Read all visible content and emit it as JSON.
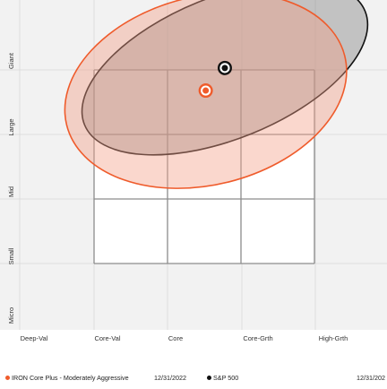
{
  "chart_data": {
    "type": "scatter",
    "x_categories": [
      "Deep-Val",
      "Core-Val",
      "Core",
      "Core-Grth",
      "High-Grth"
    ],
    "y_categories": [
      "Micro",
      "Small",
      "Mid",
      "Large",
      "Giant"
    ],
    "series": [
      {
        "name": "IRON Core Plus - Moderately Aggressive",
        "date": "12/31/2022",
        "x": 1.52,
        "y": 3.68,
        "ellipse": {
          "rx": 1.95,
          "ry": 1.46,
          "angle_deg": -14
        },
        "color": "#ef5b2b",
        "fill": "rgba(243,160,135,0.42)"
      },
      {
        "name": "S&P 500",
        "date": "12/31/202",
        "x": 1.78,
        "y": 4.03,
        "ellipse": {
          "rx": 2.06,
          "ry": 1.1,
          "angle_deg": -22
        },
        "color": "#111111",
        "fill": "rgba(136,136,136,0.45)"
      }
    ],
    "style_box": {
      "x_range": [
        0,
        3
      ],
      "y_range": [
        1,
        4
      ]
    },
    "colors": {
      "background": "#f2f2f2",
      "grid": "#dddddd",
      "box": "#8c8c8c",
      "portfolio": "#ef5b2b",
      "benchmark": "#111111"
    }
  },
  "legend": {
    "items": [
      {
        "label": "IRON Core Plus - Moderately Aggressive",
        "date": "12/31/2022"
      },
      {
        "label": "S&P 500",
        "date": "12/31/202"
      }
    ]
  }
}
